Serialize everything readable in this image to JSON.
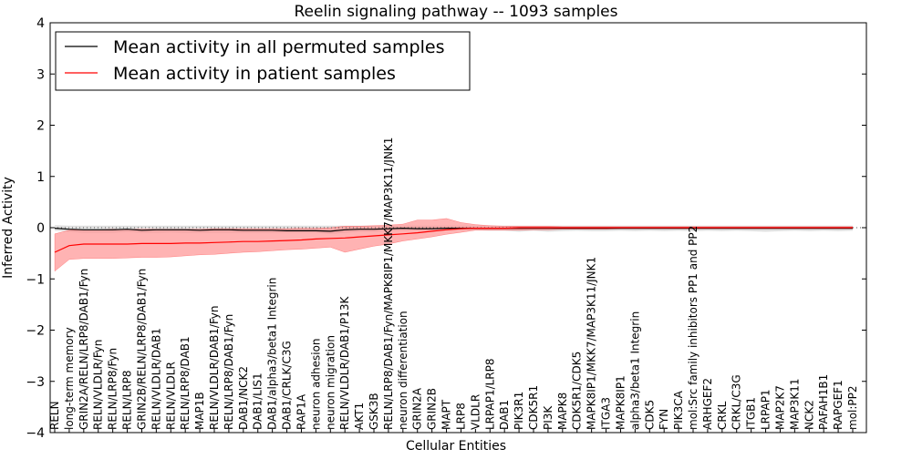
{
  "chart_data": {
    "type": "line",
    "title": "Reelin signaling pathway -- 1093 samples",
    "xlabel": "Cellular Entities",
    "ylabel": "Inferred Activity",
    "ylim": [
      -4,
      4
    ],
    "yticks": [
      -4,
      -3,
      -2,
      -1,
      0,
      1,
      2,
      3,
      4
    ],
    "ytick_labels": [
      "−4",
      "−3",
      "−2",
      "−1",
      "0",
      "1",
      "2",
      "3",
      "4"
    ],
    "legend_position": "top-left",
    "reference_line": 0,
    "categories": [
      "RELN",
      "long-term memory",
      "GRIN2A/RELN/LRP8/DAB1/Fyn",
      "RELN/VLDLR/Fyn",
      "RELN/LRP8/Fyn",
      "RELN/LRP8",
      "GRIN2B/RELN/LRP8/DAB1/Fyn",
      "RELN/VLDLR/DAB1",
      "RELN/VLDLR",
      "RELN/LRP8/DAB1",
      "MAP1B",
      "RELN/VLDLR/DAB1/Fyn",
      "RELN/LRP8/DAB1/Fyn",
      "DAB1/NCK2",
      "DAB1/LIS1",
      "DAB1/alpha3/beta1 Integrin",
      "DAB1/CRLK/C3G",
      "RAP1A",
      "neuron adhesion",
      "neuron migration",
      "RELN/VLDLR/DAB1/P13K",
      "AKT1",
      "GSK3B",
      "RELN/LRP8/DAB1/Fyn/MAPK8IP1/MKK7/MAP3K11/JNK1",
      "neuron differentiation",
      "GRIN2A",
      "GRIN2B",
      "MAPT",
      "LRP8",
      "VLDLR",
      "LRPAP1/LRP8",
      "DAB1",
      "PIK3R1",
      "CDK5R1",
      "PI3K",
      "MAPK8",
      "CDK5R1/CDK5",
      "MAPK8IP1/MKK7/MAP3K11/JNK1",
      "ITGA3",
      "MAPK8IP1",
      "alpha3/beta1 Integrin",
      "CDK5",
      "FYN",
      "PIK3CA",
      "mol:Src family inhibitors PP1 and PP2",
      "ARHGEF2",
      "CRKL",
      "CRKL/C3G",
      "ITGB1",
      "LRPAP1",
      "MAP2K7",
      "MAP3K11",
      "NCK2",
      "PAFAH1B1",
      "RAPGEF1",
      "mol:PP2"
    ],
    "series": [
      {
        "name": "Mean activity in all permuted samples",
        "color": "#000000",
        "band_color": "#bbbbbb",
        "values": [
          -0.01,
          -0.03,
          -0.04,
          -0.04,
          -0.04,
          -0.03,
          -0.05,
          -0.04,
          -0.04,
          -0.04,
          -0.05,
          -0.04,
          -0.04,
          -0.05,
          -0.05,
          -0.05,
          -0.06,
          -0.06,
          -0.06,
          -0.07,
          -0.04,
          -0.03,
          -0.03,
          -0.02,
          -0.01,
          -0.02,
          -0.02,
          -0.01,
          -0.01,
          -0.01,
          -0.01,
          -0.01,
          -0.01,
          -0.01,
          -0.01,
          -0.01,
          -0.01,
          -0.01,
          -0.01,
          -0.01,
          -0.01,
          -0.01,
          -0.01,
          -0.01,
          -0.01,
          -0.01,
          -0.01,
          -0.01,
          -0.01,
          -0.01,
          -0.01,
          -0.01,
          -0.01,
          -0.01,
          -0.01,
          -0.01
        ],
        "lower": [
          -0.06,
          -0.08,
          -0.1,
          -0.1,
          -0.1,
          -0.08,
          -0.1,
          -0.1,
          -0.09,
          -0.1,
          -0.1,
          -0.1,
          -0.1,
          -0.1,
          -0.1,
          -0.1,
          -0.1,
          -0.1,
          -0.1,
          -0.12,
          -0.1,
          -0.08,
          -0.08,
          -0.07,
          -0.06,
          -0.06,
          -0.06,
          -0.05,
          -0.05,
          -0.05,
          -0.06,
          -0.06,
          -0.08,
          -0.06,
          -0.08,
          -0.07,
          -0.06,
          -0.07,
          -0.07,
          -0.06,
          -0.07,
          -0.06,
          -0.07,
          -0.06,
          -0.07,
          -0.06,
          -0.07,
          -0.06,
          -0.07,
          -0.08,
          -0.07,
          -0.06,
          -0.07,
          -0.06,
          -0.07,
          -0.06
        ],
        "upper": [
          0.05,
          0.04,
          0.04,
          0.04,
          0.04,
          0.04,
          0.04,
          0.04,
          0.04,
          0.04,
          0.04,
          0.04,
          0.04,
          0.04,
          0.04,
          0.04,
          0.04,
          0.04,
          0.04,
          0.04,
          0.04,
          0.04,
          0.04,
          0.04,
          0.04,
          0.04,
          0.04,
          0.04,
          0.04,
          0.04,
          0.04,
          0.04,
          0.04,
          0.04,
          0.04,
          0.04,
          0.04,
          0.04,
          0.04,
          0.04,
          0.04,
          0.04,
          0.04,
          0.04,
          0.04,
          0.04,
          0.04,
          0.04,
          0.04,
          0.04,
          0.04,
          0.04,
          0.04,
          0.04,
          0.04,
          0.04
        ]
      },
      {
        "name": "Mean activity in patient samples",
        "color": "#ff0000",
        "band_color": "#ff8080",
        "values": [
          -0.48,
          -0.35,
          -0.32,
          -0.32,
          -0.32,
          -0.32,
          -0.31,
          -0.31,
          -0.31,
          -0.3,
          -0.3,
          -0.29,
          -0.28,
          -0.27,
          -0.27,
          -0.26,
          -0.25,
          -0.24,
          -0.22,
          -0.21,
          -0.2,
          -0.18,
          -0.16,
          -0.14,
          -0.12,
          -0.1,
          -0.07,
          -0.04,
          -0.02,
          -0.01,
          -0.01,
          -0.01,
          0.0,
          0.0,
          0.0,
          0.0,
          0.0,
          0.0,
          0.0,
          0.0,
          0.0,
          0.0,
          0.0,
          0.0,
          0.0,
          0.0,
          0.0,
          0.0,
          0.0,
          0.0,
          0.0,
          0.0,
          0.0,
          0.0,
          0.0,
          0.0
        ],
        "lower": [
          -0.85,
          -0.62,
          -0.6,
          -0.6,
          -0.6,
          -0.59,
          -0.58,
          -0.58,
          -0.57,
          -0.55,
          -0.53,
          -0.52,
          -0.5,
          -0.48,
          -0.47,
          -0.45,
          -0.43,
          -0.42,
          -0.4,
          -0.38,
          -0.48,
          -0.42,
          -0.36,
          -0.32,
          -0.26,
          -0.22,
          -0.18,
          -0.13,
          -0.09,
          -0.05,
          -0.05,
          -0.05,
          -0.05,
          -0.04,
          -0.04,
          -0.03,
          -0.03,
          -0.03,
          -0.03,
          -0.02,
          -0.02,
          -0.02,
          -0.02,
          -0.02,
          -0.02,
          -0.02,
          -0.02,
          -0.02,
          -0.02,
          -0.02,
          -0.02,
          -0.02,
          -0.02,
          -0.02,
          -0.02,
          -0.02
        ],
        "upper": [
          -0.12,
          -0.05,
          -0.04,
          -0.04,
          -0.03,
          -0.03,
          -0.03,
          -0.03,
          -0.03,
          -0.03,
          -0.03,
          -0.02,
          -0.02,
          -0.02,
          -0.02,
          -0.02,
          -0.02,
          -0.01,
          -0.01,
          0.0,
          0.03,
          0.03,
          0.04,
          0.05,
          0.07,
          0.15,
          0.15,
          0.18,
          0.1,
          0.06,
          0.04,
          0.03,
          0.03,
          0.03,
          0.03,
          0.02,
          0.02,
          0.02,
          0.02,
          0.02,
          0.02,
          0.02,
          0.02,
          0.02,
          0.02,
          0.02,
          0.02,
          0.02,
          0.02,
          0.02,
          0.02,
          0.02,
          0.02,
          0.02,
          0.02,
          0.02
        ]
      }
    ]
  }
}
